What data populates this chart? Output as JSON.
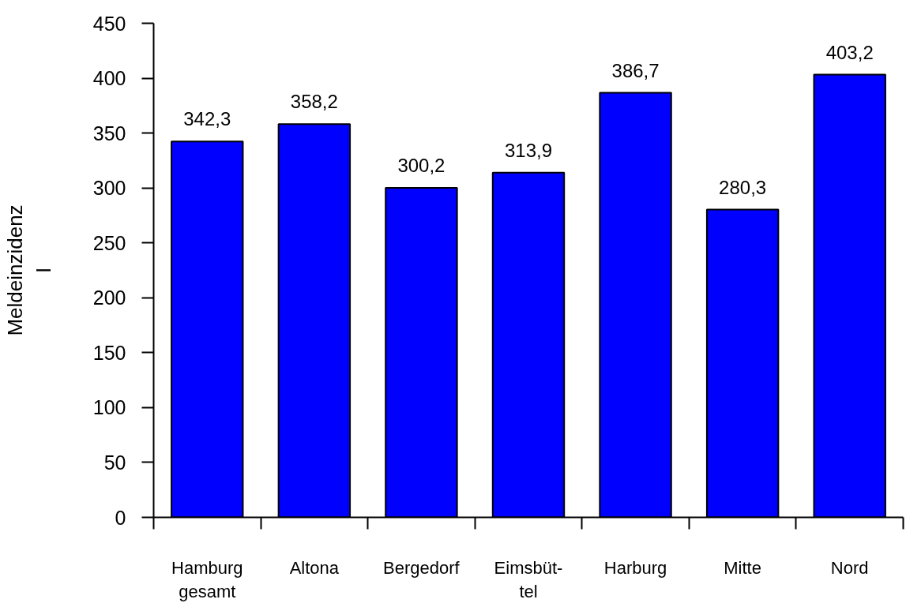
{
  "chart_data": {
    "type": "bar",
    "ylabel": "Meldeinzidenz\nI",
    "categories": [
      "Hamburg\ngesamt",
      "Altona",
      "Bergedorf",
      "Eimsbüt-\ntel",
      "Harburg",
      "Mitte",
      "Nord"
    ],
    "values": [
      342.3,
      358.2,
      300.2,
      313.9,
      386.7,
      280.3,
      403.2
    ],
    "value_labels": [
      "342,3",
      "358,2",
      "300,2",
      "313,9",
      "386,7",
      "280,3",
      "403,2"
    ],
    "color": "#0000ff",
    "ylim": [
      0,
      450
    ],
    "yticks": [
      0,
      50,
      100,
      150,
      200,
      250,
      300,
      350,
      400,
      450
    ],
    "grid": false
  }
}
